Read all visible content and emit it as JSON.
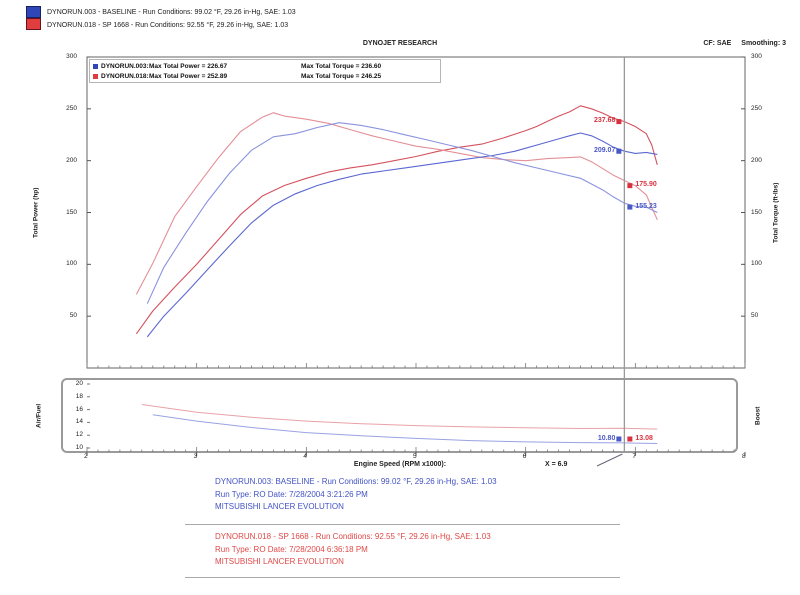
{
  "header": {
    "run1_line": "DYNORUN.003 - BASELINE  -  Run Conditions: 99.02 °F, 29.26 in-Hg, SAE: 1.03",
    "run2_line": "DYNORUN.018 - SP 1668  -  Run Conditions: 92.55 °F, 29.26 in-Hg, SAE: 1.03",
    "title": "DYNOJET RESEARCH",
    "cf_label": "CF: SAE",
    "smoothing_label": "Smoothing: 3"
  },
  "colors": {
    "run1": "#4a58c8",
    "run2": "#d5323e",
    "swatch_run1": "#2e46b8",
    "swatch_run2": "#e03e3e",
    "footer_run1": "#4253c4",
    "footer_run2": "#e04848",
    "cursor": "#999999",
    "divider": "#aaaaaa"
  },
  "plot_legend": {
    "rows": [
      {
        "run_id": "DYNORUN.003:",
        "power": "Max Total Power = 226.67",
        "torque": "Max Total Torque = 236.60",
        "color": "#2e46b8"
      },
      {
        "run_id": "DYNORUN.018:",
        "power": "Max Total Power = 252.89",
        "torque": "Max Total Torque = 246.25",
        "color": "#e03e3e"
      }
    ]
  },
  "chart_data": {
    "type": "line",
    "title": "DYNOJET RESEARCH",
    "xlabel": "Engine Speed (RPM x1000):",
    "xlim": [
      2,
      8
    ],
    "x_ticks": [
      2,
      3,
      4,
      5,
      6,
      7,
      8
    ],
    "cursor_x": 6.9,
    "cursor_readout": "X = 6.9",
    "main": {
      "ylabel_left": "Total Power (hp)",
      "ylabel_right": "Total Torque (ft-lbs)",
      "ylim": [
        0,
        300
      ],
      "y_ticks": [
        300,
        250,
        200,
        150,
        100,
        50
      ],
      "series": [
        {
          "dname": "run2-power-trace",
          "label": "DYNORUN.018 Total Power",
          "color": "#d4525e",
          "width": 1.1,
          "x": [
            2.45,
            2.6,
            2.8,
            3.0,
            3.2,
            3.4,
            3.6,
            3.8,
            4.0,
            4.2,
            4.4,
            4.6,
            4.8,
            5.0,
            5.2,
            5.4,
            5.6,
            5.8,
            6.0,
            6.1,
            6.2,
            6.3,
            6.4,
            6.5,
            6.6,
            6.7,
            6.8,
            6.9,
            7.0,
            7.1,
            7.15,
            7.2
          ],
          "y": [
            33,
            55,
            78,
            100,
            124,
            148,
            166,
            176,
            183,
            189,
            193,
            196,
            200,
            204,
            209,
            213,
            216,
            222,
            229,
            233,
            238,
            243,
            247,
            252.9,
            250,
            246,
            241,
            237.7,
            233,
            226,
            215,
            196
          ]
        },
        {
          "dname": "run2-torque-trace",
          "label": "DYNORUN.018 Total Torque",
          "color": "#e39097",
          "width": 1.1,
          "x": [
            2.45,
            2.6,
            2.8,
            3.0,
            3.2,
            3.4,
            3.6,
            3.7,
            3.8,
            4.0,
            4.2,
            4.4,
            4.6,
            4.8,
            5.0,
            5.2,
            5.4,
            5.6,
            5.8,
            6.0,
            6.2,
            6.4,
            6.5,
            6.6,
            6.8,
            6.9,
            7.0,
            7.1,
            7.2
          ],
          "y": [
            71,
            101,
            146,
            175,
            203,
            228,
            242,
            246.3,
            243,
            240,
            236,
            230,
            224,
            219,
            214,
            211,
            207,
            203,
            201,
            200,
            202,
            203,
            203.6,
            199,
            186,
            180.9,
            175.9,
            167,
            143
          ]
        },
        {
          "dname": "run1-power-trace",
          "label": "DYNORUN.003 Total Power",
          "color": "#5b68d0",
          "width": 1.1,
          "x": [
            2.55,
            2.7,
            2.9,
            3.1,
            3.3,
            3.5,
            3.7,
            3.9,
            4.1,
            4.3,
            4.5,
            4.7,
            4.9,
            5.1,
            5.3,
            5.5,
            5.7,
            5.9,
            6.0,
            6.1,
            6.2,
            6.3,
            6.4,
            6.5,
            6.6,
            6.7,
            6.8,
            6.9,
            7.0,
            7.1,
            7.2
          ],
          "y": [
            30,
            50,
            72,
            95,
            118,
            140,
            157,
            168,
            176,
            182,
            187,
            190,
            193,
            196,
            199,
            202,
            205,
            209,
            212,
            215,
            218,
            221,
            224,
            226.7,
            224,
            219,
            213,
            209.1,
            207,
            208,
            206
          ]
        },
        {
          "dname": "run1-torque-trace",
          "label": "DYNORUN.003 Total Torque",
          "color": "#8a93dd",
          "width": 1.1,
          "x": [
            2.55,
            2.7,
            2.9,
            3.1,
            3.3,
            3.5,
            3.7,
            3.9,
            4.1,
            4.3,
            4.5,
            4.7,
            4.9,
            5.1,
            5.3,
            5.5,
            5.7,
            5.9,
            6.1,
            6.3,
            6.5,
            6.7,
            6.8,
            6.9,
            7.0,
            7.1,
            7.2
          ],
          "y": [
            62,
            97,
            130,
            161,
            188,
            210,
            223,
            226,
            232,
            236.6,
            234,
            230,
            225,
            220,
            215,
            210,
            204,
            198,
            193,
            188,
            183,
            172,
            165,
            159,
            156,
            155.2,
            150
          ]
        }
      ],
      "cursor_labels": [
        {
          "text": "237.68",
          "value": 237.68,
          "side": "left",
          "color": "#d5323e"
        },
        {
          "text": "209.07",
          "value": 209.07,
          "side": "left",
          "color": "#4a58c8"
        },
        {
          "text": "175.90",
          "value": 175.9,
          "side": "right",
          "color": "#d5323e"
        },
        {
          "text": "155.23",
          "value": 155.23,
          "side": "right",
          "color": "#4a58c8"
        }
      ]
    },
    "sub": {
      "ylabel_left": "Air/Fuel",
      "ylabel_right": "Boost",
      "ylim": [
        10,
        20
      ],
      "y_ticks": [
        20,
        18,
        16,
        14,
        12,
        10
      ],
      "series": [
        {
          "dname": "run2-airfuel-trace",
          "label": "DYNORUN.018 Air/Fuel",
          "color": "#e8a2a8",
          "width": 1,
          "x": [
            2.5,
            3.0,
            3.5,
            4.0,
            4.5,
            5.0,
            5.5,
            6.0,
            6.5,
            6.9,
            7.2
          ],
          "y": [
            16.8,
            15.6,
            14.8,
            14.2,
            13.8,
            13.5,
            13.3,
            13.15,
            13.05,
            13.08,
            12.95
          ]
        },
        {
          "dname": "run1-airfuel-trace",
          "label": "DYNORUN.003 Air/Fuel",
          "color": "#9aa2e2",
          "width": 1,
          "x": [
            2.6,
            3.0,
            3.5,
            4.0,
            4.5,
            5.0,
            5.5,
            6.0,
            6.5,
            6.9,
            7.2
          ],
          "y": [
            15.2,
            14.2,
            13.2,
            12.4,
            11.9,
            11.5,
            11.15,
            10.95,
            10.85,
            10.8,
            10.7
          ]
        }
      ],
      "cursor_labels": [
        {
          "text": "10.80",
          "value": 10.8,
          "side": "left",
          "color": "#4a58c8"
        },
        {
          "text": "13.08",
          "value": 13.08,
          "side": "right",
          "color": "#d5323e"
        }
      ]
    },
    "max_values": {
      "run1": {
        "power": 226.67,
        "torque": 236.6
      },
      "run2": {
        "power": 252.89,
        "torque": 246.25
      }
    }
  },
  "footer": {
    "blocks": [
      {
        "lines": [
          "DYNORUN.003: BASELINE  -  Run Conditions: 99.02 °F, 29.26 in-Hg, SAE: 1.03",
          "Run Type: RO  Date: 7/28/2004 3:21:26 PM",
          "MITSUBISHI LANCER EVOLUTION"
        ]
      },
      {
        "lines": [
          "DYNORUN.018 - SP 1668  -  Run Conditions: 92.55 °F, 29.26 in-Hg, SAE: 1.03",
          "Run Type: RO  Date: 7/28/2004 6:36:18 PM",
          "MITSUBISHI LANCER EVOLUTION"
        ]
      }
    ]
  }
}
